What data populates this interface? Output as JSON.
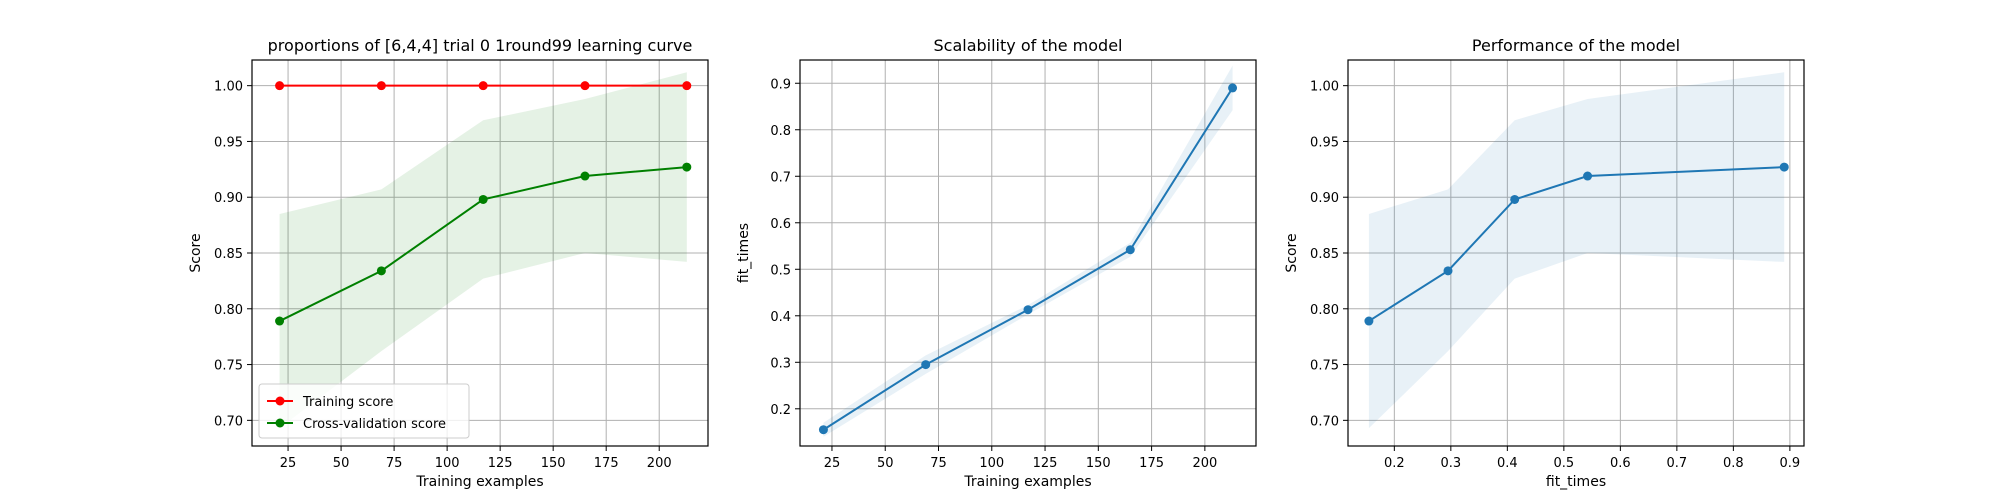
{
  "chart_data": [
    {
      "type": "line",
      "title": "proportions of [6,4,4] trial 0 1round99 learning curve",
      "xlabel": "Training examples",
      "ylabel": "Score",
      "xlim": [
        8,
        223
      ],
      "ylim": [
        0.677,
        1.023
      ],
      "xticks": [
        25,
        50,
        75,
        100,
        125,
        150,
        175,
        200
      ],
      "yticks": [
        0.7,
        0.75,
        0.8,
        0.85,
        0.9,
        0.95,
        1.0
      ],
      "xtick_labels": [
        "25",
        "50",
        "75",
        "100",
        "125",
        "150",
        "175",
        "200"
      ],
      "ytick_labels": [
        "0.70",
        "0.75",
        "0.80",
        "0.85",
        "0.90",
        "0.95",
        "1.00"
      ],
      "grid": true,
      "legend": "lower-left",
      "x": [
        21,
        69,
        117,
        165,
        213
      ],
      "series": [
        {
          "name": "Training score",
          "color": "#ff0000",
          "values": [
            1.0,
            1.0,
            1.0,
            1.0,
            1.0
          ],
          "band_lower": [
            1.0,
            1.0,
            1.0,
            1.0,
            1.0
          ],
          "band_upper": [
            1.0,
            1.0,
            1.0,
            1.0,
            1.0
          ],
          "band_color": "#ff0000"
        },
        {
          "name": "Cross-validation score",
          "color": "#008000",
          "values": [
            0.789,
            0.834,
            0.898,
            0.919,
            0.927
          ],
          "band_lower": [
            0.693,
            0.762,
            0.827,
            0.85,
            0.842
          ],
          "band_upper": [
            0.885,
            0.907,
            0.969,
            0.988,
            1.012
          ],
          "band_color": "#008000"
        }
      ]
    },
    {
      "type": "line",
      "title": "Scalability of the model",
      "xlabel": "Training examples",
      "ylabel": "fit_times",
      "xlim": [
        10,
        224
      ],
      "ylim": [
        0.12,
        0.95
      ],
      "xticks": [
        25,
        50,
        75,
        100,
        125,
        150,
        175,
        200
      ],
      "yticks": [
        0.2,
        0.3,
        0.4,
        0.5,
        0.6,
        0.7,
        0.8,
        0.9
      ],
      "xtick_labels": [
        "25",
        "50",
        "75",
        "100",
        "125",
        "150",
        "175",
        "200"
      ],
      "ytick_labels": [
        "0.2",
        "0.3",
        "0.4",
        "0.5",
        "0.6",
        "0.7",
        "0.8",
        "0.9"
      ],
      "grid": true,
      "x": [
        21,
        69,
        117,
        165,
        213
      ],
      "series": [
        {
          "color": "#1f77b4",
          "values": [
            0.155,
            0.295,
            0.413,
            0.542,
            0.89
          ],
          "band_lower": [
            0.14,
            0.275,
            0.403,
            0.527,
            0.842
          ],
          "band_upper": [
            0.17,
            0.315,
            0.423,
            0.557,
            0.938
          ],
          "band_color": "#1f77b4"
        }
      ]
    },
    {
      "type": "line",
      "title": "Performance of the model",
      "xlabel": "fit_times",
      "ylabel": "Score",
      "xlim": [
        0.118,
        0.925
      ],
      "ylim": [
        0.677,
        1.023
      ],
      "xticks": [
        0.2,
        0.3,
        0.4,
        0.5,
        0.6,
        0.7,
        0.8,
        0.9
      ],
      "yticks": [
        0.7,
        0.75,
        0.8,
        0.85,
        0.9,
        0.95,
        1.0
      ],
      "xtick_labels": [
        "0.2",
        "0.3",
        "0.4",
        "0.5",
        "0.6",
        "0.7",
        "0.8",
        "0.9"
      ],
      "ytick_labels": [
        "0.70",
        "0.75",
        "0.80",
        "0.85",
        "0.90",
        "0.95",
        "1.00"
      ],
      "grid": true,
      "x": [
        0.155,
        0.295,
        0.413,
        0.542,
        0.89
      ],
      "series": [
        {
          "color": "#1f77b4",
          "values": [
            0.789,
            0.834,
            0.898,
            0.919,
            0.927
          ],
          "band_lower": [
            0.693,
            0.762,
            0.827,
            0.85,
            0.842
          ],
          "band_upper": [
            0.885,
            0.907,
            0.969,
            0.988,
            1.012
          ],
          "band_color": "#1f77b4"
        }
      ]
    }
  ]
}
